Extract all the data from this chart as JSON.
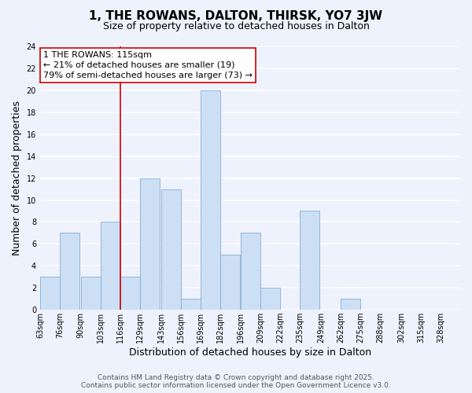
{
  "title": "1, THE ROWANS, DALTON, THIRSK, YO7 3JW",
  "subtitle": "Size of property relative to detached houses in Dalton",
  "xlabel": "Distribution of detached houses by size in Dalton",
  "ylabel": "Number of detached properties",
  "bin_labels": [
    "63sqm",
    "76sqm",
    "90sqm",
    "103sqm",
    "116sqm",
    "129sqm",
    "143sqm",
    "156sqm",
    "169sqm",
    "182sqm",
    "196sqm",
    "209sqm",
    "222sqm",
    "235sqm",
    "249sqm",
    "262sqm",
    "275sqm",
    "288sqm",
    "302sqm",
    "315sqm",
    "328sqm"
  ],
  "bin_edges": [
    63,
    76,
    90,
    103,
    116,
    129,
    143,
    156,
    169,
    182,
    196,
    209,
    222,
    235,
    249,
    262,
    275,
    288,
    302,
    315,
    328
  ],
  "counts": [
    3,
    7,
    3,
    8,
    3,
    12,
    11,
    1,
    20,
    5,
    7,
    2,
    0,
    9,
    0,
    1,
    0,
    0,
    0,
    0,
    0
  ],
  "bar_color": "#ccdff5",
  "bar_edge_color": "#85aed4",
  "vline_x": 116,
  "vline_color": "#cc0000",
  "annotation_title": "1 THE ROWANS: 115sqm",
  "annotation_line1": "← 21% of detached houses are smaller (19)",
  "annotation_line2": "79% of semi-detached houses are larger (73) →",
  "ylim": [
    0,
    24
  ],
  "yticks": [
    0,
    2,
    4,
    6,
    8,
    10,
    12,
    14,
    16,
    18,
    20,
    22,
    24
  ],
  "footer_line1": "Contains HM Land Registry data © Crown copyright and database right 2025.",
  "footer_line2": "Contains public sector information licensed under the Open Government Licence v3.0.",
  "bg_color": "#eef2fc",
  "grid_color": "#ffffff",
  "title_fontsize": 11,
  "subtitle_fontsize": 9,
  "axis_label_fontsize": 9,
  "tick_fontsize": 7,
  "annotation_fontsize": 8,
  "footer_fontsize": 6.5
}
